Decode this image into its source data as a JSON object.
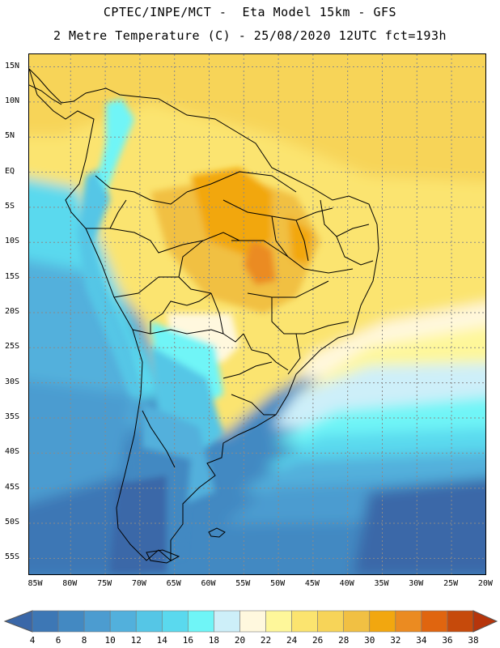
{
  "header": {
    "line1": "CPTEC/INPE/MCT -  Eta Model 15km - GFS",
    "line2": "2 Metre Temperature (C) - 25/08/2020 12UTC fct=193h"
  },
  "map": {
    "lat_labels": [
      "15N",
      "10N",
      "5N",
      "EQ",
      "5S",
      "10S",
      "15S",
      "20S",
      "25S",
      "30S",
      "35S",
      "40S",
      "45S",
      "50S",
      "55S"
    ],
    "lon_labels": [
      "85W",
      "80W",
      "75W",
      "70W",
      "65W",
      "60W",
      "55W",
      "50W",
      "45W",
      "40W",
      "35W",
      "30W",
      "25W",
      "20W"
    ]
  },
  "legend": {
    "levels": [
      "4",
      "6",
      "8",
      "10",
      "12",
      "14",
      "16",
      "18",
      "20",
      "22",
      "24",
      "26",
      "28",
      "30",
      "32",
      "34",
      "36",
      "38"
    ],
    "colors": [
      "#3a67a8",
      "#3d77b5",
      "#4389c2",
      "#4c9cd0",
      "#52b0dc",
      "#55c6e6",
      "#5ad9ee",
      "#6ff5f7",
      "#cdeff9",
      "#fff8de",
      "#fef79a",
      "#fbe46f",
      "#f7d458",
      "#f1c043",
      "#f2a70f",
      "#eb8b21",
      "#e0650f",
      "#c64a0b",
      "#b6350b"
    ]
  }
}
